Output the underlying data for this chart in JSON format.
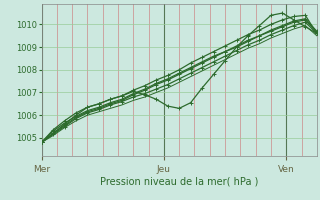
{
  "title": "Pression niveau de la mer( hPa )",
  "bg_color": "#cce8df",
  "line_color": "#2d6b2d",
  "grid_h_color": "#99cc99",
  "grid_v_minor_color": "#cc8888",
  "grid_v_major_color": "#557755",
  "ylim": [
    1004.2,
    1010.9
  ],
  "yticks": [
    1005,
    1006,
    1007,
    1008,
    1009,
    1010
  ],
  "xlim": [
    0,
    108
  ],
  "day_labels": [
    "Mer",
    "Jeu",
    "Ven"
  ],
  "day_positions": [
    0,
    48,
    96
  ],
  "series": [
    {
      "y": [
        1004.8,
        1005.15,
        1005.5,
        1005.85,
        1006.1,
        1006.25,
        1006.45,
        1006.6,
        1006.8,
        1006.95,
        1007.15,
        1007.35,
        1007.6,
        1007.85,
        1008.1,
        1008.35,
        1008.6,
        1008.85,
        1009.1,
        1009.3,
        1009.55,
        1009.75,
        1009.95,
        1010.1,
        1009.6
      ],
      "markers": true,
      "lw": 0.9
    },
    {
      "y": [
        1004.8,
        1005.2,
        1005.55,
        1005.9,
        1006.15,
        1006.3,
        1006.5,
        1006.65,
        1006.9,
        1007.1,
        1007.35,
        1007.55,
        1007.8,
        1008.05,
        1008.3,
        1008.55,
        1008.8,
        1009.0,
        1009.25,
        1009.5,
        1009.7,
        1009.9,
        1010.1,
        1010.2,
        1009.65
      ],
      "markers": true,
      "lw": 0.9
    },
    {
      "y": [
        1004.8,
        1005.3,
        1005.65,
        1005.95,
        1006.2,
        1006.35,
        1006.55,
        1006.7,
        1006.95,
        1007.15,
        1007.4,
        1007.6,
        1007.85,
        1008.1,
        1008.35,
        1008.6,
        1008.8,
        1009.05,
        1009.3,
        1009.5,
        1009.75,
        1009.95,
        1010.15,
        1010.25,
        1009.7
      ],
      "markers": true,
      "lw": 0.9
    },
    {
      "y": [
        1004.8,
        1005.35,
        1005.75,
        1006.1,
        1006.35,
        1006.5,
        1006.7,
        1006.85,
        1007.1,
        1007.3,
        1007.55,
        1007.75,
        1008.0,
        1008.3,
        1008.55,
        1008.8,
        1009.05,
        1009.3,
        1009.55,
        1009.75,
        1010.0,
        1010.2,
        1010.35,
        1010.4,
        1009.6
      ],
      "markers": true,
      "lw": 0.9
    },
    {
      "y": [
        1004.8,
        1005.2,
        1005.6,
        1006.0,
        1006.35,
        1006.5,
        1006.7,
        1006.85,
        1007.05,
        1006.9,
        1006.7,
        1006.4,
        1006.3,
        1006.55,
        1007.2,
        1007.8,
        1008.4,
        1009.0,
        1009.5,
        1009.95,
        1010.4,
        1010.5,
        1010.2,
        1009.9,
        1009.6
      ],
      "markers": true,
      "lw": 0.9
    },
    {
      "y": [
        1004.8,
        1005.1,
        1005.45,
        1005.75,
        1006.0,
        1006.15,
        1006.3,
        1006.45,
        1006.65,
        1006.8,
        1007.0,
        1007.2,
        1007.45,
        1007.7,
        1007.95,
        1008.2,
        1008.45,
        1008.7,
        1008.95,
        1009.15,
        1009.4,
        1009.6,
        1009.8,
        1009.95,
        1009.5
      ],
      "markers": false,
      "lw": 0.7
    }
  ]
}
